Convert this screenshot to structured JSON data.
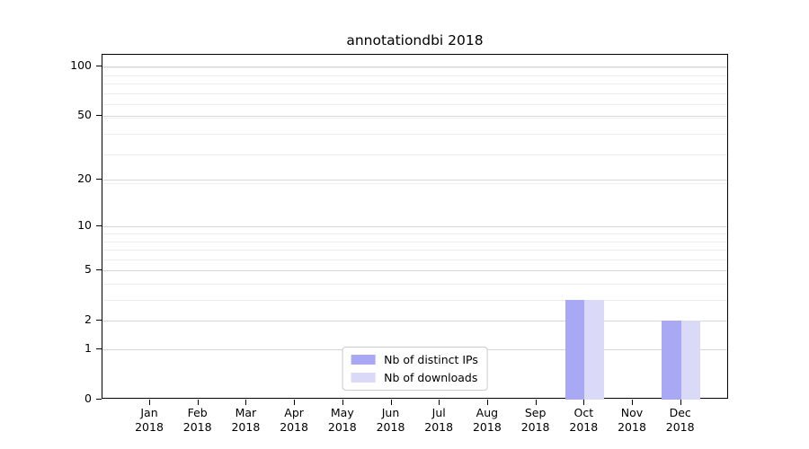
{
  "figure": {
    "title": "annotationdbi 2018",
    "background": "#ffffff"
  },
  "chart_data": {
    "type": "bar",
    "title": "annotationdbi 2018",
    "categories": [
      "Jan",
      "Feb",
      "Mar",
      "Apr",
      "May",
      "Jun",
      "Jul",
      "Aug",
      "Sep",
      "Oct",
      "Nov",
      "Dec"
    ],
    "category_year": "2018",
    "series": [
      {
        "name": "Nb of distinct IPs",
        "color": "#a8a8f4",
        "values": [
          0,
          0,
          0,
          0,
          0,
          0,
          0,
          0,
          0,
          3,
          0,
          2
        ]
      },
      {
        "name": "Nb of downloads",
        "color": "#dadaf8",
        "values": [
          0,
          0,
          0,
          0,
          0,
          0,
          0,
          0,
          0,
          3,
          0,
          2
        ]
      }
    ],
    "xlabel": "",
    "ylabel": "",
    "y_scale": "log10(1+x)",
    "y_ticks": [
      0,
      1,
      2,
      5,
      10,
      20,
      50,
      100
    ],
    "ylim": [
      0,
      117
    ],
    "grid": "horizontal",
    "legend_position": "lower center",
    "colors": {
      "major_grid": "#d6d6d6",
      "minor_grid": "#ededed",
      "spine": "#000000",
      "legend_border": "#cccccc",
      "text": "#000000"
    }
  }
}
